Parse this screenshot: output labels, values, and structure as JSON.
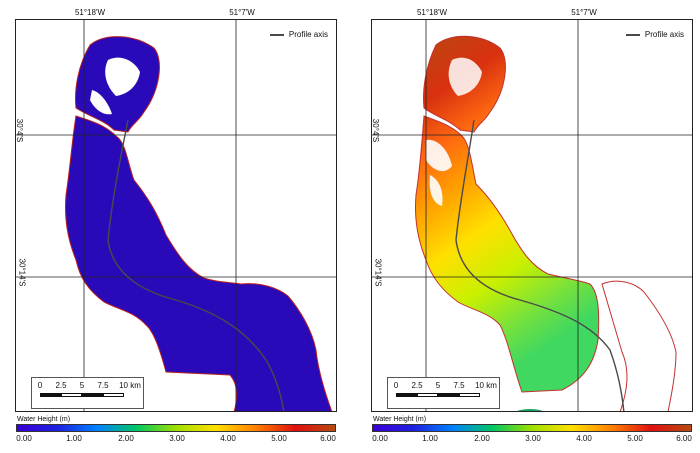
{
  "panels": [
    {
      "id": "left",
      "mode": "uniform",
      "fill_color": "#2a0ab8",
      "edge_color": "#b82020",
      "top_ticks": [
        "51°18'W",
        "51°7'W"
      ],
      "side_ticks": [
        "30°4'S",
        "30°14'S"
      ],
      "legend_label": "Profile axis",
      "scalebar": {
        "labels": [
          "0",
          "2.5",
          "5",
          "7.5",
          "10 km"
        ]
      },
      "colorbar": {
        "title": "Water Height (m)",
        "labels": [
          "0.00",
          "1.00",
          "2.00",
          "3.00",
          "4.00",
          "5.00",
          "6.00"
        ]
      }
    },
    {
      "id": "right",
      "mode": "graded",
      "fill_color": "",
      "edge_color": "#c43030",
      "top_ticks": [
        "51°18'W",
        "51°7'W"
      ],
      "side_ticks": [
        "30°4'S",
        "30°14'S"
      ],
      "legend_label": "Profile axis",
      "scalebar": {
        "labels": [
          "0",
          "2.5",
          "5",
          "7.5",
          "10 km"
        ]
      },
      "colorbar": {
        "title": "Water Height (m)",
        "labels": [
          "0.00",
          "1.00",
          "2.00",
          "3.00",
          "4.00",
          "5.00",
          "6.00"
        ]
      }
    }
  ],
  "colors": {
    "ramp": [
      "#3b00d6",
      "#1f1fe0",
      "#0080ff",
      "#00c864",
      "#a0e000",
      "#ffe000",
      "#ff8000",
      "#e01010",
      "#b84a10"
    ],
    "axis_line": "#4a4a4a",
    "grid_line": "#222222"
  }
}
